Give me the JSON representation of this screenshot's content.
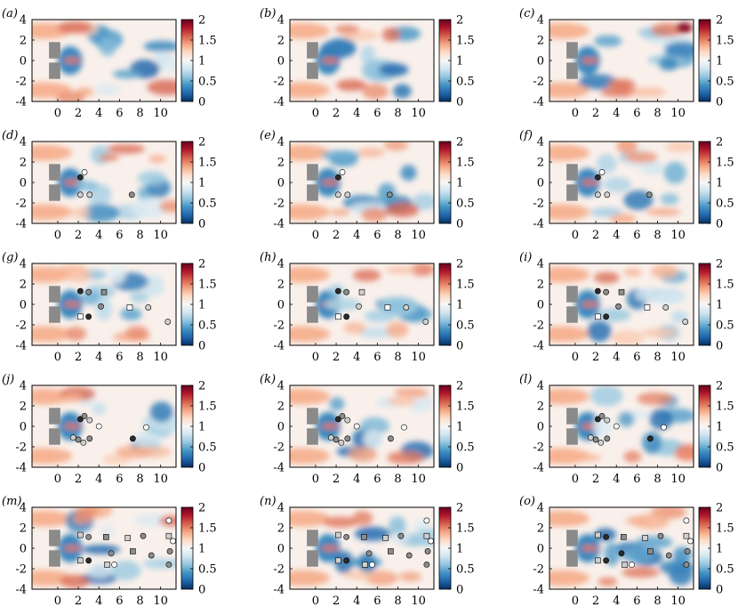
{
  "figure": {
    "panel_labels": [
      "(a)",
      "(b)",
      "(c)",
      "(d)",
      "(e)",
      "(f)",
      "(g)",
      "(h)",
      "(i)",
      "(j)",
      "(k)",
      "(l)",
      "(m)",
      "(n)",
      "(o)"
    ]
  },
  "chart_data": {
    "type": "heatmap",
    "colormap": [
      "#053061",
      "#2166ac",
      "#4393c3",
      "#92c5de",
      "#d1e5f0",
      "#f7f7f7",
      "#fddbc7",
      "#f4a582",
      "#d6604d",
      "#b2182b",
      "#67001f"
    ],
    "colorbar": {
      "range": [
        0,
        2
      ],
      "ticks": [
        "0",
        "0.5",
        "1",
        "1.5",
        "2"
      ]
    },
    "xlim": [
      -2.5,
      11.5
    ],
    "ylim": [
      -4,
      4
    ],
    "xticks": [
      "0",
      "2",
      "4",
      "6",
      "8",
      "10"
    ],
    "yticks": [
      "4",
      "2",
      "0",
      "-2",
      "-4"
    ],
    "marker_colors": {
      "black": "#2b2b2b",
      "gray": "#8c8c8c",
      "light": "#cfcfcf",
      "white": "#ffffff"
    },
    "panels": [
      {
        "label": "(a)",
        "markers": []
      },
      {
        "label": "(b)",
        "markers": []
      },
      {
        "label": "(c)",
        "markers": []
      },
      {
        "label": "(d)",
        "markers": [
          {
            "x": 2.6,
            "y": 1.0,
            "shape": "circle",
            "fill": "white"
          },
          {
            "x": 2.2,
            "y": 0.5,
            "shape": "circle",
            "fill": "black"
          },
          {
            "x": 2.2,
            "y": -1.2,
            "shape": "circle",
            "fill": "light"
          },
          {
            "x": 3.1,
            "y": -1.2,
            "shape": "circle",
            "fill": "light"
          },
          {
            "x": 7.2,
            "y": -1.2,
            "shape": "circle",
            "fill": "gray"
          }
        ]
      },
      {
        "label": "(e)",
        "markers": [
          {
            "x": 2.6,
            "y": 1.0,
            "shape": "circle",
            "fill": "white"
          },
          {
            "x": 2.2,
            "y": 0.5,
            "shape": "circle",
            "fill": "black"
          },
          {
            "x": 2.2,
            "y": -1.2,
            "shape": "circle",
            "fill": "light"
          },
          {
            "x": 3.1,
            "y": -1.2,
            "shape": "circle",
            "fill": "light"
          },
          {
            "x": 7.2,
            "y": -1.2,
            "shape": "circle",
            "fill": "gray"
          }
        ]
      },
      {
        "label": "(f)",
        "markers": [
          {
            "x": 2.6,
            "y": 1.0,
            "shape": "circle",
            "fill": "white"
          },
          {
            "x": 2.2,
            "y": 0.5,
            "shape": "circle",
            "fill": "black"
          },
          {
            "x": 2.2,
            "y": -1.2,
            "shape": "circle",
            "fill": "light"
          },
          {
            "x": 3.1,
            "y": -1.2,
            "shape": "circle",
            "fill": "light"
          },
          {
            "x": 7.2,
            "y": -1.2,
            "shape": "circle",
            "fill": "gray"
          }
        ]
      },
      {
        "label": "(g)",
        "markers": [
          {
            "x": 2.2,
            "y": 1.3,
            "shape": "circle",
            "fill": "black"
          },
          {
            "x": 3.0,
            "y": 1.2,
            "shape": "circle",
            "fill": "gray"
          },
          {
            "x": 4.5,
            "y": 1.2,
            "shape": "square",
            "fill": "gray"
          },
          {
            "x": 4.2,
            "y": -0.2,
            "shape": "circle",
            "fill": "gray"
          },
          {
            "x": 2.2,
            "y": -1.2,
            "shape": "square",
            "fill": "white"
          },
          {
            "x": 3.0,
            "y": -1.2,
            "shape": "circle",
            "fill": "black"
          },
          {
            "x": 7.0,
            "y": -0.3,
            "shape": "square",
            "fill": "white"
          },
          {
            "x": 8.8,
            "y": -0.3,
            "shape": "circle",
            "fill": "light"
          },
          {
            "x": 10.7,
            "y": -1.7,
            "shape": "circle",
            "fill": "light"
          }
        ]
      },
      {
        "label": "(h)",
        "markers": [
          {
            "x": 2.2,
            "y": 1.3,
            "shape": "circle",
            "fill": "black"
          },
          {
            "x": 3.0,
            "y": 1.2,
            "shape": "circle",
            "fill": "gray"
          },
          {
            "x": 4.5,
            "y": 1.2,
            "shape": "square",
            "fill": "light"
          },
          {
            "x": 4.2,
            "y": -0.2,
            "shape": "circle",
            "fill": "light"
          },
          {
            "x": 2.2,
            "y": -1.2,
            "shape": "square",
            "fill": "white"
          },
          {
            "x": 3.0,
            "y": -1.2,
            "shape": "circle",
            "fill": "black"
          },
          {
            "x": 7.0,
            "y": -0.3,
            "shape": "square",
            "fill": "white"
          },
          {
            "x": 8.8,
            "y": -0.3,
            "shape": "circle",
            "fill": "light"
          },
          {
            "x": 10.7,
            "y": -1.7,
            "shape": "circle",
            "fill": "light"
          }
        ]
      },
      {
        "label": "(i)",
        "markers": [
          {
            "x": 2.2,
            "y": 1.3,
            "shape": "circle",
            "fill": "black"
          },
          {
            "x": 3.0,
            "y": 1.2,
            "shape": "circle",
            "fill": "gray"
          },
          {
            "x": 4.5,
            "y": 1.2,
            "shape": "square",
            "fill": "gray"
          },
          {
            "x": 4.2,
            "y": -0.2,
            "shape": "circle",
            "fill": "gray"
          },
          {
            "x": 2.2,
            "y": -1.2,
            "shape": "square",
            "fill": "white"
          },
          {
            "x": 3.0,
            "y": -1.2,
            "shape": "circle",
            "fill": "black"
          },
          {
            "x": 7.0,
            "y": -0.3,
            "shape": "square",
            "fill": "white"
          },
          {
            "x": 8.8,
            "y": -0.3,
            "shape": "circle",
            "fill": "light"
          },
          {
            "x": 10.7,
            "y": -1.7,
            "shape": "circle",
            "fill": "light"
          }
        ]
      },
      {
        "label": "(j)",
        "markers": [
          {
            "x": 2.2,
            "y": 0.7,
            "shape": "circle",
            "fill": "black"
          },
          {
            "x": 2.6,
            "y": 1.0,
            "shape": "circle",
            "fill": "gray"
          },
          {
            "x": 3.1,
            "y": 0.6,
            "shape": "circle",
            "fill": "light"
          },
          {
            "x": 4.0,
            "y": 0.0,
            "shape": "circle",
            "fill": "white"
          },
          {
            "x": 1.5,
            "y": -1.1,
            "shape": "circle",
            "fill": "light"
          },
          {
            "x": 2.0,
            "y": -1.3,
            "shape": "circle",
            "fill": "gray"
          },
          {
            "x": 2.5,
            "y": -1.6,
            "shape": "circle",
            "fill": "light"
          },
          {
            "x": 3.1,
            "y": -1.2,
            "shape": "circle",
            "fill": "gray"
          },
          {
            "x": 7.3,
            "y": -1.2,
            "shape": "circle",
            "fill": "black"
          },
          {
            "x": 8.6,
            "y": -0.1,
            "shape": "circle",
            "fill": "white"
          }
        ]
      },
      {
        "label": "(k)",
        "markers": [
          {
            "x": 2.2,
            "y": 0.7,
            "shape": "circle",
            "fill": "black"
          },
          {
            "x": 2.6,
            "y": 1.0,
            "shape": "circle",
            "fill": "gray"
          },
          {
            "x": 3.1,
            "y": 0.6,
            "shape": "circle",
            "fill": "light"
          },
          {
            "x": 4.0,
            "y": 0.0,
            "shape": "circle",
            "fill": "white"
          },
          {
            "x": 1.5,
            "y": -1.1,
            "shape": "circle",
            "fill": "light"
          },
          {
            "x": 2.0,
            "y": -1.3,
            "shape": "circle",
            "fill": "gray"
          },
          {
            "x": 2.5,
            "y": -1.6,
            "shape": "circle",
            "fill": "light"
          },
          {
            "x": 3.1,
            "y": -1.2,
            "shape": "circle",
            "fill": "gray"
          },
          {
            "x": 7.3,
            "y": -1.2,
            "shape": "circle",
            "fill": "gray"
          },
          {
            "x": 8.6,
            "y": -0.1,
            "shape": "circle",
            "fill": "white"
          }
        ]
      },
      {
        "label": "(l)",
        "markers": [
          {
            "x": 2.2,
            "y": 0.7,
            "shape": "circle",
            "fill": "black"
          },
          {
            "x": 2.6,
            "y": 1.0,
            "shape": "circle",
            "fill": "gray"
          },
          {
            "x": 3.1,
            "y": 0.6,
            "shape": "circle",
            "fill": "light"
          },
          {
            "x": 4.0,
            "y": 0.0,
            "shape": "circle",
            "fill": "white"
          },
          {
            "x": 1.5,
            "y": -1.1,
            "shape": "circle",
            "fill": "light"
          },
          {
            "x": 2.0,
            "y": -1.3,
            "shape": "circle",
            "fill": "gray"
          },
          {
            "x": 2.5,
            "y": -1.6,
            "shape": "circle",
            "fill": "light"
          },
          {
            "x": 3.1,
            "y": -1.2,
            "shape": "circle",
            "fill": "gray"
          },
          {
            "x": 7.3,
            "y": -1.2,
            "shape": "circle",
            "fill": "black"
          },
          {
            "x": 8.6,
            "y": -0.1,
            "shape": "circle",
            "fill": "white"
          }
        ]
      },
      {
        "label": "(m)",
        "markers": [
          {
            "x": 2.2,
            "y": 1.3,
            "shape": "square",
            "fill": "light"
          },
          {
            "x": 3.0,
            "y": 1.1,
            "shape": "circle",
            "fill": "gray"
          },
          {
            "x": 4.7,
            "y": 1.1,
            "shape": "square",
            "fill": "gray"
          },
          {
            "x": 5.2,
            "y": -0.5,
            "shape": "circle",
            "fill": "gray"
          },
          {
            "x": 2.2,
            "y": -1.2,
            "shape": "square",
            "fill": "light"
          },
          {
            "x": 3.0,
            "y": -1.2,
            "shape": "circle",
            "fill": "black"
          },
          {
            "x": 4.8,
            "y": -1.6,
            "shape": "square",
            "fill": "light"
          },
          {
            "x": 5.5,
            "y": -1.6,
            "shape": "circle",
            "fill": "white"
          },
          {
            "x": 6.8,
            "y": 1.0,
            "shape": "square",
            "fill": "light"
          },
          {
            "x": 7.3,
            "y": -0.3,
            "shape": "square",
            "fill": "gray"
          },
          {
            "x": 8.3,
            "y": 1.2,
            "shape": "circle",
            "fill": "gray"
          },
          {
            "x": 9.1,
            "y": -0.7,
            "shape": "circle",
            "fill": "gray"
          },
          {
            "x": 10.8,
            "y": 2.7,
            "shape": "circle",
            "fill": "white"
          },
          {
            "x": 10.8,
            "y": 1.2,
            "shape": "square",
            "fill": "light"
          },
          {
            "x": 11.2,
            "y": 0.7,
            "shape": "circle",
            "fill": "white"
          },
          {
            "x": 10.9,
            "y": -0.3,
            "shape": "circle",
            "fill": "gray"
          },
          {
            "x": 10.8,
            "y": -1.6,
            "shape": "circle",
            "fill": "gray"
          }
        ]
      },
      {
        "label": "(n)",
        "markers": [
          {
            "x": 2.2,
            "y": 1.3,
            "shape": "square",
            "fill": "light"
          },
          {
            "x": 3.0,
            "y": 1.1,
            "shape": "circle",
            "fill": "gray"
          },
          {
            "x": 4.7,
            "y": 1.1,
            "shape": "square",
            "fill": "gray"
          },
          {
            "x": 5.2,
            "y": -0.5,
            "shape": "circle",
            "fill": "gray"
          },
          {
            "x": 2.2,
            "y": -1.2,
            "shape": "square",
            "fill": "light"
          },
          {
            "x": 3.0,
            "y": -1.2,
            "shape": "circle",
            "fill": "black"
          },
          {
            "x": 4.8,
            "y": -1.6,
            "shape": "square",
            "fill": "light"
          },
          {
            "x": 5.5,
            "y": -1.6,
            "shape": "circle",
            "fill": "white"
          },
          {
            "x": 6.8,
            "y": 1.0,
            "shape": "square",
            "fill": "light"
          },
          {
            "x": 7.3,
            "y": -0.3,
            "shape": "square",
            "fill": "gray"
          },
          {
            "x": 8.3,
            "y": 1.2,
            "shape": "circle",
            "fill": "gray"
          },
          {
            "x": 9.1,
            "y": -0.7,
            "shape": "circle",
            "fill": "gray"
          },
          {
            "x": 10.8,
            "y": 2.7,
            "shape": "circle",
            "fill": "white"
          },
          {
            "x": 10.8,
            "y": 1.2,
            "shape": "square",
            "fill": "light"
          },
          {
            "x": 11.2,
            "y": 0.7,
            "shape": "circle",
            "fill": "white"
          },
          {
            "x": 10.9,
            "y": -0.3,
            "shape": "circle",
            "fill": "gray"
          },
          {
            "x": 10.8,
            "y": -1.6,
            "shape": "circle",
            "fill": "gray"
          }
        ]
      },
      {
        "label": "(o)",
        "markers": [
          {
            "x": 2.2,
            "y": 1.3,
            "shape": "square",
            "fill": "light"
          },
          {
            "x": 3.0,
            "y": 1.1,
            "shape": "circle",
            "fill": "black"
          },
          {
            "x": 4.7,
            "y": 1.1,
            "shape": "square",
            "fill": "gray"
          },
          {
            "x": 4.5,
            "y": -0.5,
            "shape": "circle",
            "fill": "black"
          },
          {
            "x": 2.2,
            "y": -1.2,
            "shape": "square",
            "fill": "light"
          },
          {
            "x": 3.0,
            "y": -1.2,
            "shape": "circle",
            "fill": "black"
          },
          {
            "x": 4.8,
            "y": -1.6,
            "shape": "square",
            "fill": "light"
          },
          {
            "x": 5.5,
            "y": -1.6,
            "shape": "circle",
            "fill": "white"
          },
          {
            "x": 6.8,
            "y": 1.0,
            "shape": "square",
            "fill": "light"
          },
          {
            "x": 7.3,
            "y": -0.3,
            "shape": "square",
            "fill": "gray"
          },
          {
            "x": 8.3,
            "y": 1.2,
            "shape": "circle",
            "fill": "gray"
          },
          {
            "x": 9.1,
            "y": -0.7,
            "shape": "circle",
            "fill": "gray"
          },
          {
            "x": 10.8,
            "y": 2.7,
            "shape": "circle",
            "fill": "white"
          },
          {
            "x": 10.8,
            "y": 1.2,
            "shape": "square",
            "fill": "light"
          },
          {
            "x": 11.2,
            "y": 0.7,
            "shape": "circle",
            "fill": "white"
          },
          {
            "x": 10.9,
            "y": -0.3,
            "shape": "circle",
            "fill": "gray"
          },
          {
            "x": 10.8,
            "y": -1.6,
            "shape": "circle",
            "fill": "gray"
          }
        ]
      }
    ]
  }
}
